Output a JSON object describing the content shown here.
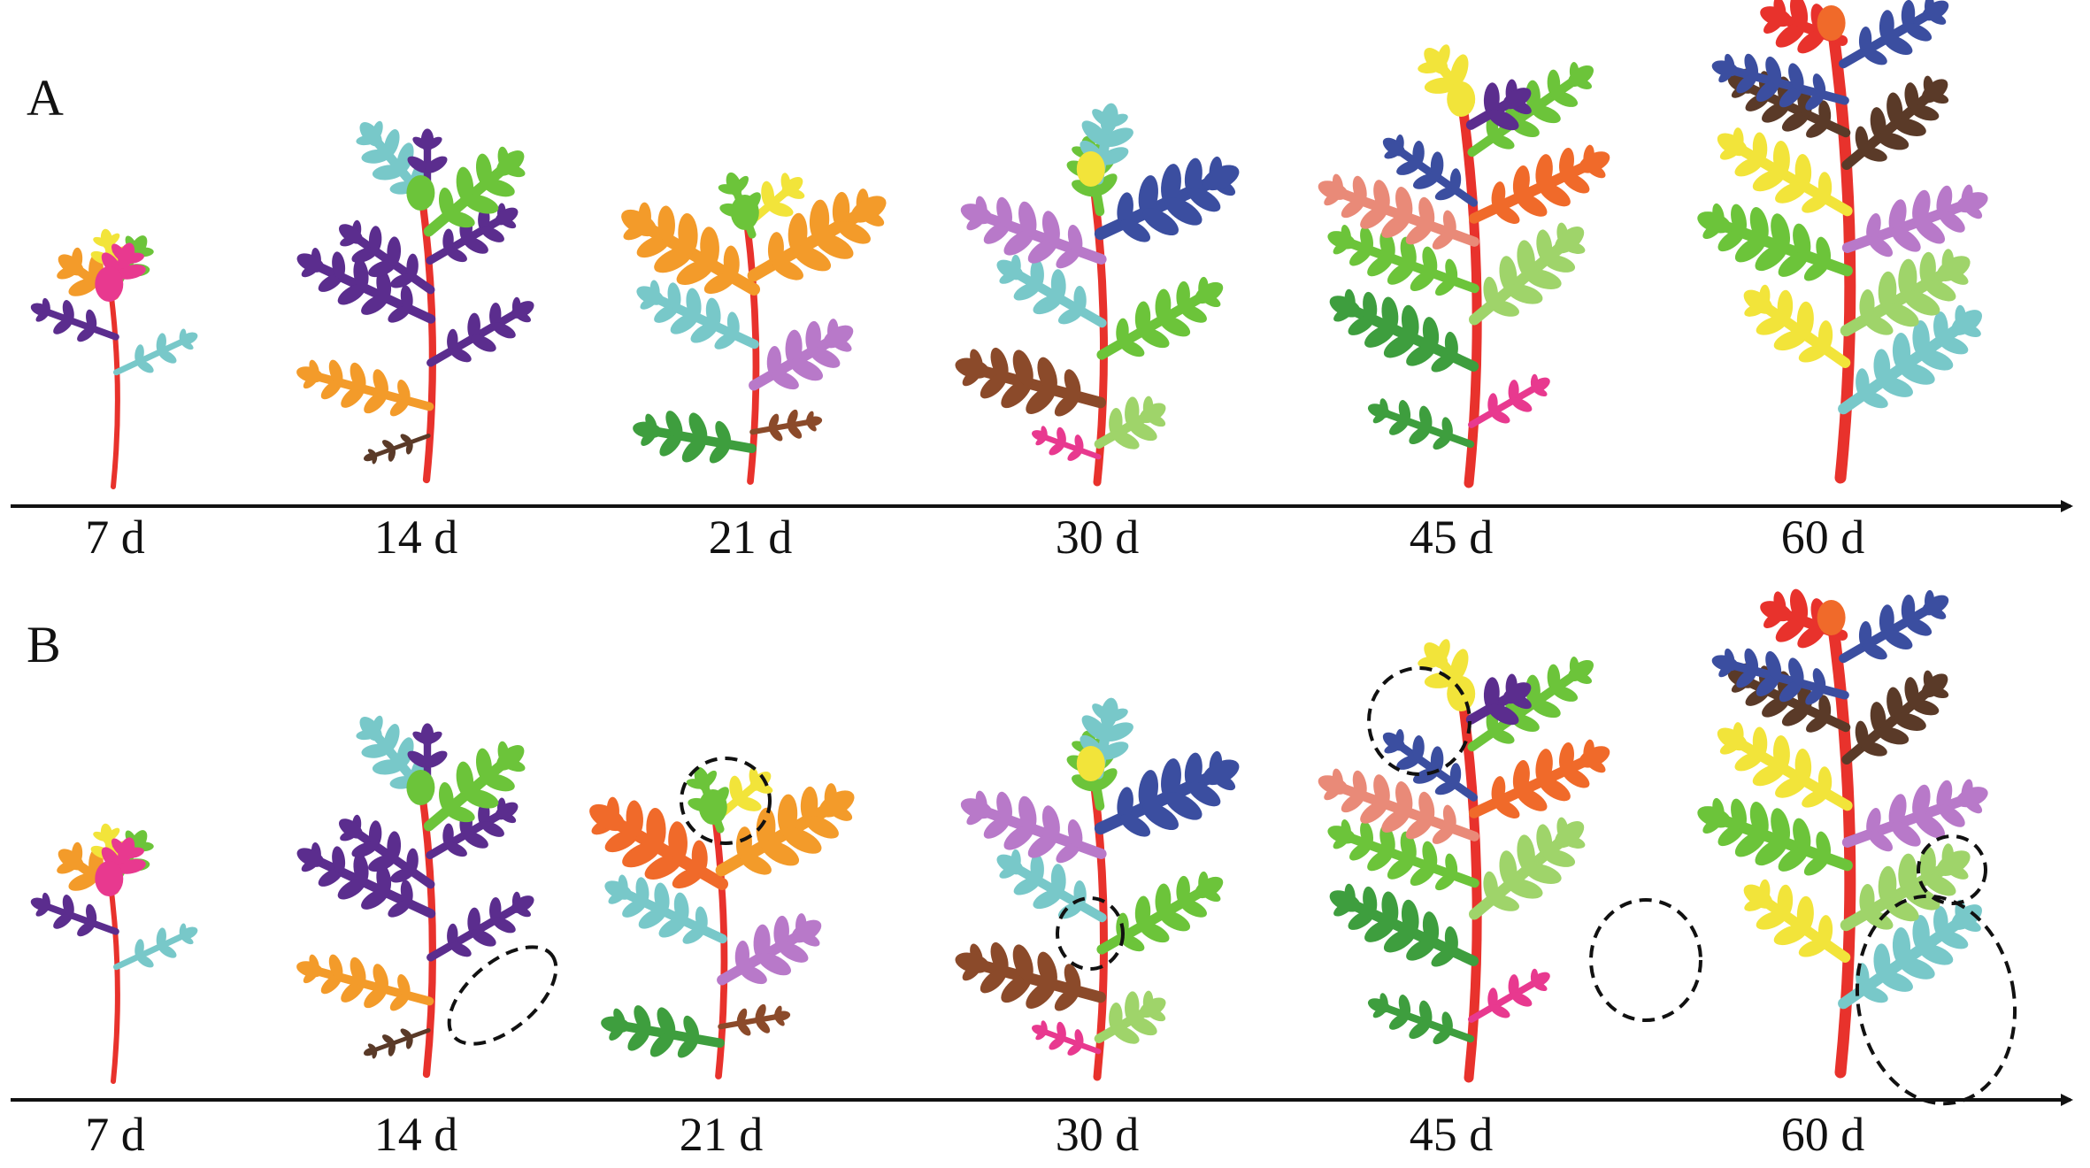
{
  "panels": [
    {
      "label": "A",
      "days": [
        "7 d",
        "14 d",
        "21 d",
        "30 d",
        "45 d",
        "60 d"
      ]
    },
    {
      "label": "B",
      "days": [
        "7 d",
        "14 d",
        "21 d",
        "30 d",
        "45 d",
        "60 d"
      ]
    }
  ],
  "colors": {
    "stem": "#e8322c",
    "axis": "#111111",
    "highlight_circle": "#111111"
  },
  "plant_color_palette": [
    "#e8322c",
    "#f39b2a",
    "#f2e43a",
    "#6cc43a",
    "#78c8c9",
    "#5b2d8e",
    "#e8398f",
    "#f06a2a",
    "#3b4ea0",
    "#b879c9",
    "#8b4a2a",
    "#3e9e3e",
    "#9fd46a",
    "#e98a78",
    "#5a3a28"
  ]
}
